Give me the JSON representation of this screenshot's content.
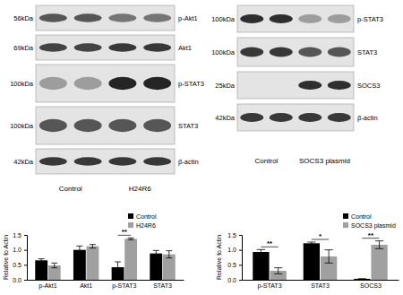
{
  "blots": [
    {
      "rows": [
        {
          "kda": "56kDa",
          "protein": "p-Akt1"
        },
        {
          "kda": "69kDa",
          "protein": "Akt1"
        },
        {
          "kda": "100kDa",
          "protein": "p-STAT3"
        },
        {
          "kda": "100kDa",
          "protein": "STAT3"
        },
        {
          "kda": "42kDa",
          "protein": "β-actin"
        }
      ],
      "groups": [
        "Control",
        "H24R6"
      ]
    },
    {
      "rows": [
        {
          "kda": "100kDa",
          "protein": "p-STAT3"
        },
        {
          "kda": "100kDa",
          "protein": "STAT3"
        },
        {
          "kda": "25kDa",
          "protein": "SOCS3"
        },
        {
          "kda": "42kDa",
          "protein": "β-actin"
        }
      ],
      "groups": [
        "Control",
        "SOCS3 plasmid"
      ]
    }
  ],
  "chart_data": [
    {
      "type": "bar",
      "y_label": "Relative to Actin",
      "categories": [
        "p-Akt1",
        "Akt1",
        "p-STAT3",
        "STAT3"
      ],
      "series": [
        {
          "name": "Control",
          "color": "#000000",
          "values": [
            0.65,
            1.0,
            0.42,
            0.88
          ],
          "errors": [
            0.05,
            0.13,
            0.18,
            0.1
          ]
        },
        {
          "name": "H24R6",
          "color": "#a0a0a0",
          "values": [
            0.48,
            1.12,
            1.37,
            0.85
          ],
          "errors": [
            0.08,
            0.06,
            0.03,
            0.12
          ]
        }
      ],
      "ylim": [
        0,
        1.5
      ],
      "yticks": [
        {
          "value": 0,
          "label": "0.0"
        },
        0.5,
        {
          "value": 1,
          "label": "1.0"
        },
        1.5
      ],
      "legend": "upper right",
      "grid": false,
      "annotations": [
        {
          "text": "**",
          "category": "p-STAT3"
        }
      ]
    },
    {
      "type": "bar",
      "y_label": "Relative to Actin",
      "categories": [
        "p-STAT3",
        "STAT3",
        "SOCS3"
      ],
      "series": [
        {
          "name": "Control",
          "color": "#000000",
          "values": [
            0.93,
            1.22,
            0.03
          ],
          "errors": [
            0.08,
            0.04,
            0.0
          ]
        },
        {
          "name": "SOCS3 plasmid",
          "color": "#a0a0a0",
          "values": [
            0.3,
            0.78,
            1.17
          ],
          "errors": [
            0.1,
            0.22,
            0.13
          ]
        }
      ],
      "ylim": [
        0,
        1.5
      ],
      "yticks": [
        {
          "value": 0,
          "label": "0.0"
        },
        0.5,
        {
          "value": 1,
          "label": "1.0"
        },
        1.5
      ],
      "legend": "upper right",
      "grid": false,
      "annotations": [
        {
          "text": "**",
          "category": "p-STAT3"
        },
        {
          "text": "*",
          "category": "STAT3"
        },
        {
          "text": "**",
          "category": "SOCS3"
        }
      ]
    }
  ]
}
